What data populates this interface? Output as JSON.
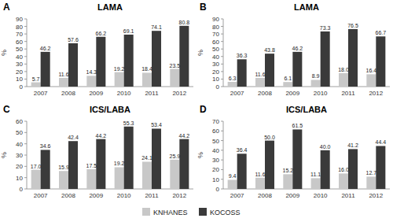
{
  "chart_data": [
    {
      "type": "bar",
      "annotation": "A",
      "title": "LAMA",
      "y_label": "%",
      "categories": [
        "2007",
        "2008",
        "2009",
        "2010",
        "2011",
        "2012"
      ],
      "series": [
        {
          "name": "KNHANES",
          "color": "#c8c8c8",
          "values": [
            5.7,
            11.6,
            14.3,
            19.2,
            18.4,
            23.5
          ],
          "value_labels": [
            "5.7",
            "11.6",
            "14.3",
            "19.2",
            "18.4",
            "23.5"
          ]
        },
        {
          "name": "KOCOSS",
          "color": "#3a3a3a",
          "values": [
            46.2,
            57.6,
            66.2,
            69.1,
            74.1,
            80.8
          ],
          "value_labels": [
            "46.2",
            "57.6",
            "66.2",
            "69.1",
            "74.1",
            "80.8"
          ]
        }
      ],
      "ylim": [
        0,
        90
      ],
      "yticks": [
        0,
        10,
        20,
        30,
        40,
        50,
        60,
        70,
        80,
        90
      ],
      "grid": false,
      "data_labels": true,
      "legend": "bottom"
    },
    {
      "type": "bar",
      "annotation": "B",
      "title": "LAMA",
      "y_label": "%",
      "categories": [
        "2007",
        "2008",
        "2009",
        "2010",
        "2011",
        "2012"
      ],
      "series": [
        {
          "name": "KNHANES",
          "color": "#c8c8c8",
          "values": [
            6.3,
            11.6,
            6.1,
            8.9,
            18.0,
            16.4
          ],
          "value_labels": [
            "6.3",
            "11.6",
            "6.1",
            "8.9",
            "18.0",
            "16.4"
          ]
        },
        {
          "name": "KOCOSS",
          "color": "#3a3a3a",
          "values": [
            36.3,
            43.8,
            46.2,
            73.3,
            76.5,
            66.7
          ],
          "value_labels": [
            "36.3",
            "43.8",
            "46.2",
            "73.3",
            "76.5",
            "66.7"
          ]
        }
      ],
      "ylim": [
        0,
        90
      ],
      "yticks": [
        0,
        10,
        20,
        30,
        40,
        50,
        60,
        70,
        80,
        90
      ],
      "grid": false,
      "data_labels": true
    },
    {
      "type": "bar",
      "annotation": "C",
      "title": "ICS/LABA",
      "y_label": "%",
      "categories": [
        "2007",
        "2008",
        "2009",
        "2010",
        "2011",
        "2012"
      ],
      "series": [
        {
          "name": "KNHANES",
          "color": "#c8c8c8",
          "values": [
            17.0,
            15.9,
            17.5,
            19.2,
            24.1,
            25.9
          ],
          "value_labels": [
            "17.0",
            "15.9",
            "17.5",
            "19.2",
            "24.1",
            "25.9"
          ]
        },
        {
          "name": "KOCOSS",
          "color": "#3a3a3a",
          "values": [
            34.6,
            42.4,
            44.2,
            55.3,
            53.4,
            44.2
          ],
          "value_labels": [
            "34.6",
            "42.4",
            "44.2",
            "55.3",
            "53.4",
            "44.2"
          ]
        }
      ],
      "ylim": [
        0,
        60
      ],
      "yticks": [
        0,
        10,
        20,
        30,
        40,
        50,
        60
      ],
      "grid": false,
      "data_labels": true
    },
    {
      "type": "bar",
      "annotation": "D",
      "title": "ICS/LABA",
      "y_label": "%",
      "categories": [
        "2007",
        "2008",
        "2009",
        "2010",
        "2011",
        "2012"
      ],
      "series": [
        {
          "name": "KNHANES",
          "color": "#c8c8c8",
          "values": [
            9.4,
            11.6,
            15.2,
            11.1,
            16.0,
            12.7
          ],
          "value_labels": [
            "9.4",
            "11.6",
            "15.2",
            "11.1",
            "16.0",
            "12.7"
          ]
        },
        {
          "name": "KOCOSS",
          "color": "#3a3a3a",
          "values": [
            36.4,
            50.0,
            61.5,
            40.0,
            41.2,
            44.4
          ],
          "value_labels": [
            "36.4",
            "50.0",
            "61.5",
            "40.0",
            "41.2",
            "44.4"
          ]
        }
      ],
      "ylim": [
        0,
        70
      ],
      "yticks": [
        0,
        10,
        20,
        30,
        40,
        50,
        60,
        70
      ],
      "grid": false,
      "data_labels": true
    }
  ]
}
